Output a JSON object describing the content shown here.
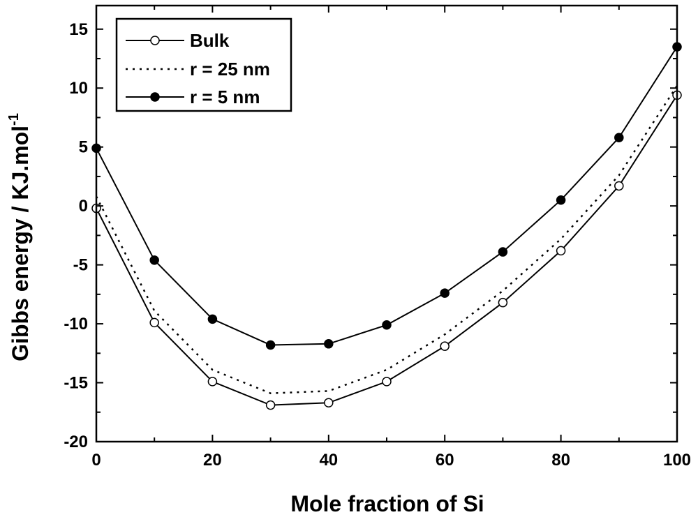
{
  "chart_data": {
    "type": "line",
    "title": "",
    "xlabel": "Mole fraction of Si",
    "ylabel_main": "Gibbs energy / KJ.mol",
    "ylabel_sup": "-1",
    "xlim": [
      0,
      100
    ],
    "ylim": [
      -20,
      17
    ],
    "x_ticks": [
      0,
      20,
      40,
      60,
      80,
      100
    ],
    "y_ticks": [
      -20,
      -15,
      -10,
      -5,
      0,
      5,
      10,
      15
    ],
    "x": [
      0,
      10,
      20,
      30,
      40,
      50,
      60,
      70,
      80,
      90,
      100
    ],
    "legend_position": "top-left",
    "series": [
      {
        "name": "Bulk",
        "style": "solid",
        "marker": "open-circle",
        "values": [
          -0.2,
          -9.9,
          -14.9,
          -16.9,
          -16.7,
          -14.9,
          -11.9,
          -8.2,
          -3.8,
          1.7,
          9.4
        ]
      },
      {
        "name": "r = 25 nm",
        "style": "dotted",
        "marker": "none",
        "values": [
          0.8,
          -8.9,
          -13.9,
          -15.9,
          -15.7,
          -13.9,
          -10.9,
          -7.2,
          -2.8,
          2.6,
          10.2
        ]
      },
      {
        "name": "r = 5 nm",
        "style": "solid",
        "marker": "filled-circle",
        "values": [
          4.9,
          -4.6,
          -9.6,
          -11.8,
          -11.7,
          -10.1,
          -7.4,
          -3.9,
          0.5,
          5.8,
          13.5
        ]
      }
    ]
  }
}
